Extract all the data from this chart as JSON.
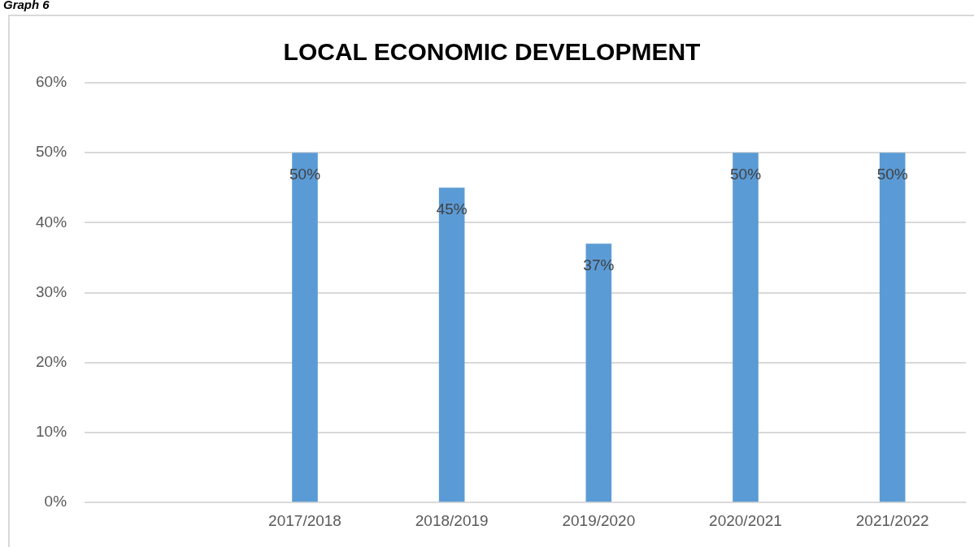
{
  "chart_data": {
    "type": "bar",
    "title": "LOCAL ECONOMIC DEVELOPMENT",
    "annotations": [
      "Graph 6"
    ],
    "categories": [
      null,
      "2017/2018",
      "2018/2019",
      "2019/2020",
      "2020/2021",
      "2021/2022"
    ],
    "values": [
      null,
      50,
      45,
      37,
      50,
      50
    ],
    "value_labels": [
      null,
      "50%",
      "45%",
      "37%",
      "50%",
      "50%"
    ],
    "color": "#5b9bd5",
    "ylim": [
      0,
      60
    ],
    "yticks": [
      {
        "value": 0,
        "label": "0%"
      },
      {
        "value": 10,
        "label": "10%"
      },
      {
        "value": 20,
        "label": "20%"
      },
      {
        "value": 30,
        "label": "30%"
      },
      {
        "value": 40,
        "label": "40%"
      },
      {
        "value": 50,
        "label": "50%"
      },
      {
        "value": 60,
        "label": "60%"
      }
    ],
    "grid": "y",
    "legend": false
  }
}
